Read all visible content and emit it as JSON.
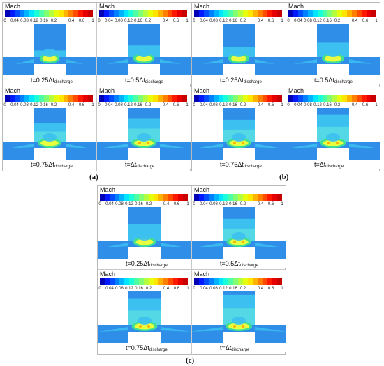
{
  "legend": {
    "title": "Mach",
    "ticks": [
      "0",
      "0.04",
      "0.08",
      "0.12",
      "0.16",
      "0.2",
      "0.4",
      "0.6",
      "1"
    ],
    "colors": [
      "#0000b4",
      "#0019ff",
      "#004cff",
      "#0080ff",
      "#00b3ff",
      "#00e5ff",
      "#19ffd9",
      "#4cffa6",
      "#80ff73",
      "#b3ff40",
      "#e5ff0d",
      "#ffe500",
      "#ffb300",
      "#ff8000",
      "#ff4c00",
      "#ff1900",
      "#e60000",
      "#c80000"
    ]
  },
  "flow_colors": {
    "background_flow": "#2e8ee8",
    "light_flow": "#3cc0f0",
    "cyan_flow": "#66e8e0",
    "jet_core": "#e8ff40",
    "jet_edge": "#40e090",
    "orange_spot": "#ffb000"
  },
  "groups": [
    {
      "caption": "(a)",
      "panels": [
        {
          "time_main": "t=0.25Δt",
          "time_sub": "discharge"
        },
        {
          "time_main": "t=0.5Δt",
          "time_sub": "discharge"
        },
        {
          "time_main": "t=0.75Δt",
          "time_sub": "discharge"
        },
        {
          "time_main": "t=Δt",
          "time_sub": "discharge"
        }
      ]
    },
    {
      "caption": "(b)",
      "panels": [
        {
          "time_main": "t=0.25Δt",
          "time_sub": "discharge"
        },
        {
          "time_main": "t=0.5Δt",
          "time_sub": "discharge"
        },
        {
          "time_main": "t=0.75Δt",
          "time_sub": "discharge"
        },
        {
          "time_main": "t=Δt",
          "time_sub": "discharge"
        }
      ]
    },
    {
      "caption": "(c)",
      "panels": [
        {
          "time_main": "t=0.25Δt",
          "time_sub": "discharge"
        },
        {
          "time_main": "t=0.5Δt",
          "time_sub": "discharge"
        },
        {
          "time_main": "t=0.75Δt",
          "time_sub": "discharge"
        },
        {
          "time_main": "t=Δt",
          "time_sub": "discharge"
        }
      ]
    }
  ]
}
